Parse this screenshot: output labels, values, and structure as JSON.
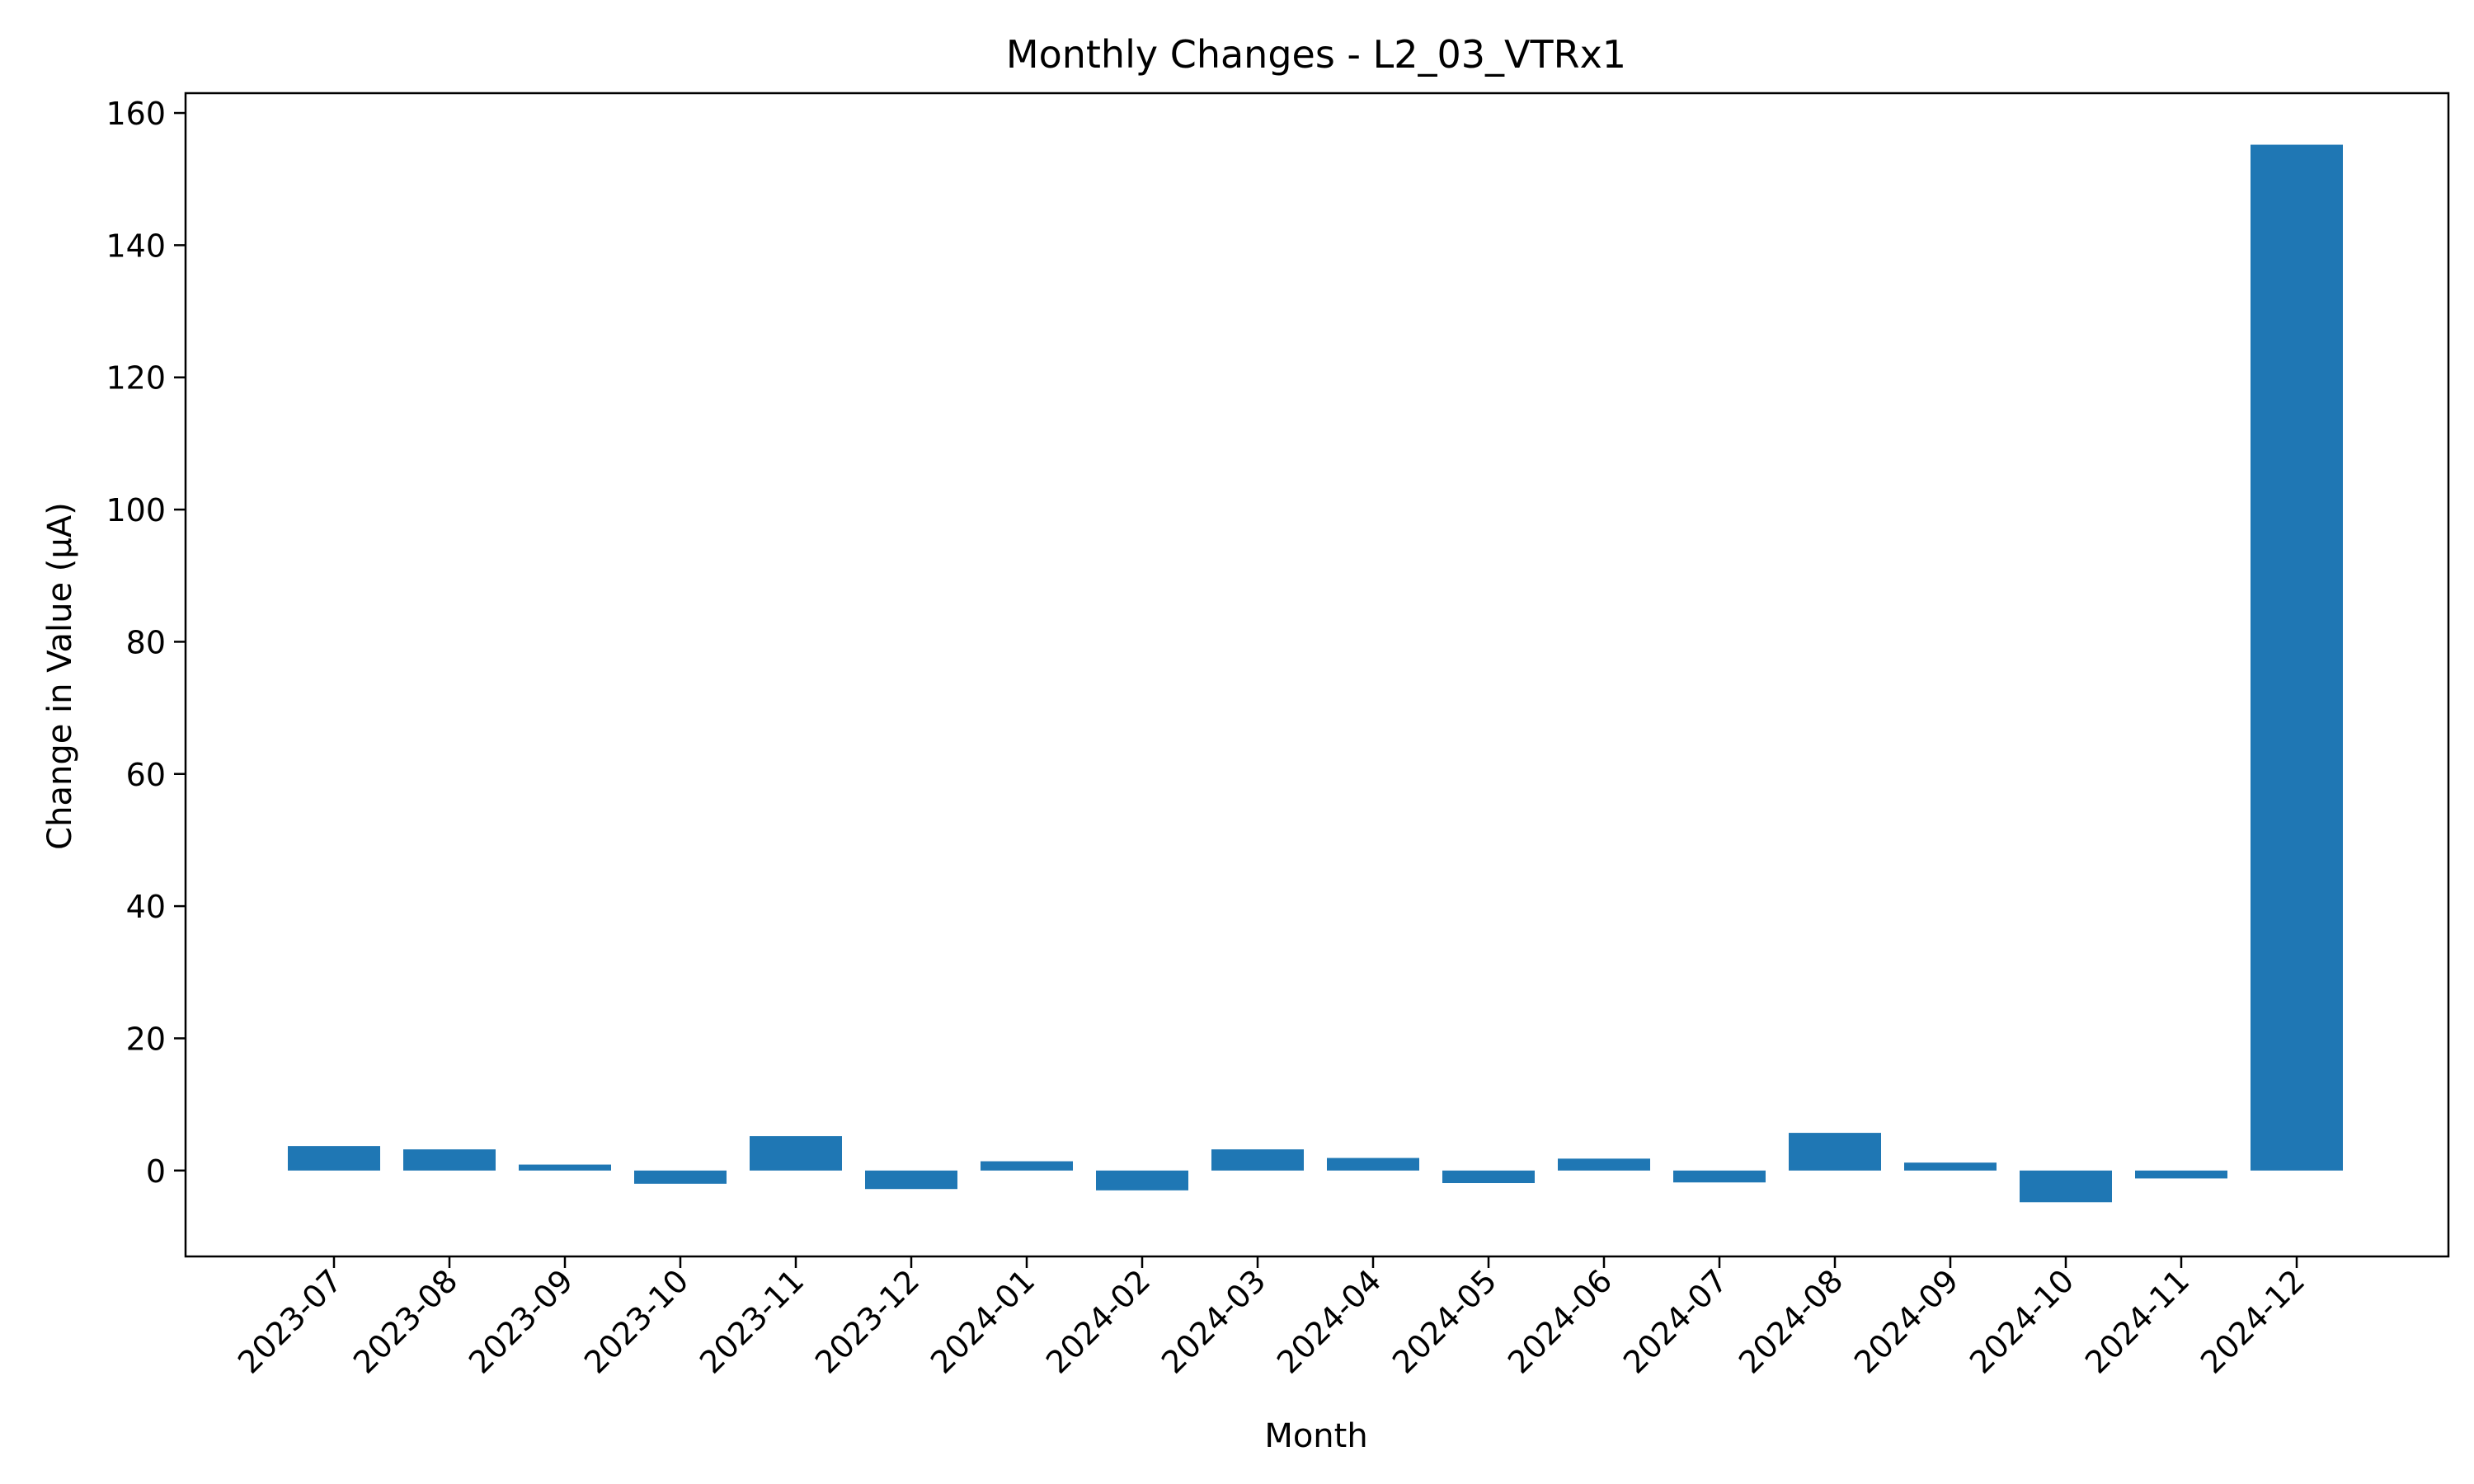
{
  "chart_data": {
    "type": "bar",
    "title": "Monthly Changes - L2_03_VTRx1",
    "xlabel": "Month",
    "ylabel": "Change in Value (μA)",
    "categories": [
      "2023-07",
      "2023-08",
      "2023-09",
      "2023-10",
      "2023-11",
      "2023-12",
      "2024-01",
      "2024-02",
      "2024-03",
      "2024-04",
      "2024-05",
      "2024-06",
      "2024-07",
      "2024-08",
      "2024-09",
      "2024-10",
      "2024-11",
      "2024-12"
    ],
    "values": [
      3.7,
      3.2,
      0.9,
      -2.0,
      5.2,
      -2.8,
      1.4,
      -3.0,
      3.2,
      1.9,
      -1.9,
      1.8,
      -1.8,
      5.7,
      1.2,
      -4.8,
      -1.2,
      155.2
    ],
    "ylim": [
      -13,
      163
    ],
    "yticks": [
      0,
      20,
      40,
      60,
      80,
      100,
      120,
      140,
      160
    ],
    "grid": false,
    "legend": "none",
    "bar_color": "#1f77b4"
  }
}
